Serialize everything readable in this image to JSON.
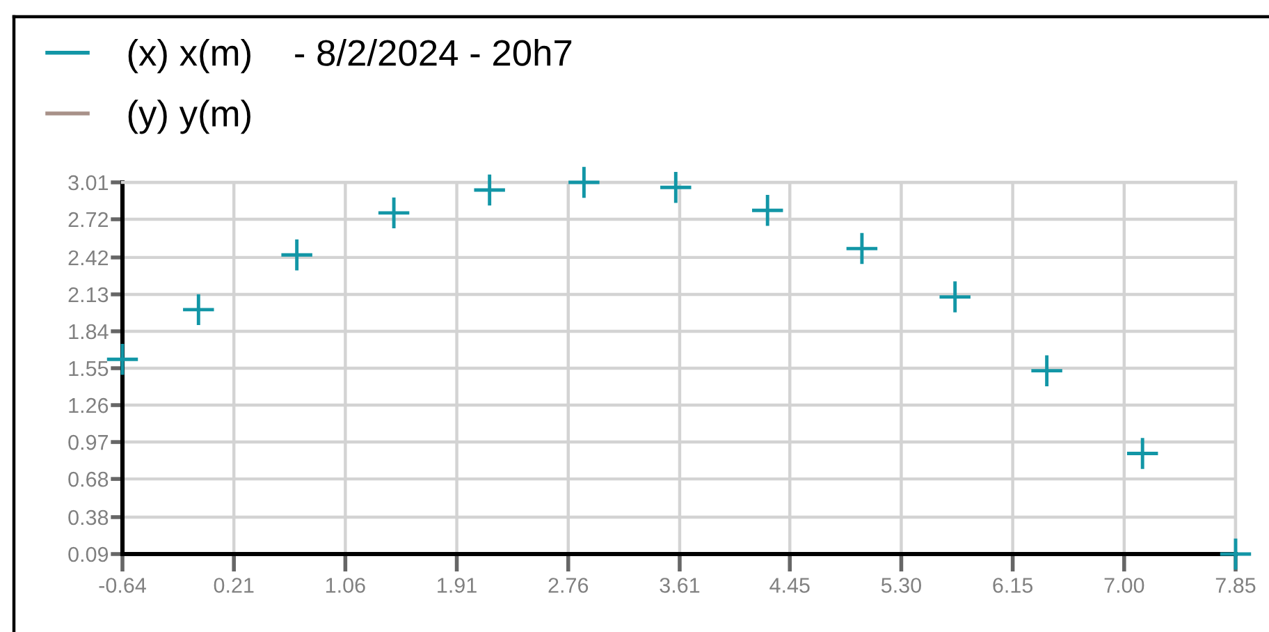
{
  "chart_data": {
    "type": "scatter",
    "x": [
      -0.64,
      -0.06,
      0.69,
      1.43,
      2.16,
      2.88,
      3.58,
      4.28,
      5.0,
      5.71,
      6.41,
      7.14,
      7.85
    ],
    "series": [
      {
        "name": "(x) x(m)    - 8/2/2024 - 20h7",
        "color": "#1296a6",
        "values": [
          1.62,
          2.01,
          2.44,
          2.77,
          2.95,
          3.01,
          2.97,
          2.79,
          2.49,
          2.11,
          1.53,
          0.88,
          0.09
        ]
      },
      {
        "name": "(y) y(m)",
        "color": "#a89189",
        "values": [
          null,
          null,
          null,
          null,
          null,
          null,
          null,
          null,
          null,
          null,
          null,
          null,
          null
        ]
      }
    ],
    "xlim": [
      -0.64,
      7.85
    ],
    "xticks": [
      -0.64,
      0.21,
      1.06,
      1.91,
      2.76,
      3.61,
      4.45,
      {
        "value": 5.3,
        "label": "5.30"
      },
      6.15,
      {
        "value": 7,
        "label": "7.00"
      },
      7.85
    ],
    "ylim": [
      0.09,
      3.01
    ],
    "yticks": [
      0.09,
      0.38,
      0.68,
      0.97,
      1.26,
      1.55,
      1.84,
      2.13,
      2.42,
      2.72,
      3.01
    ],
    "grid": true,
    "legend": "top left",
    "marker": "cross"
  }
}
